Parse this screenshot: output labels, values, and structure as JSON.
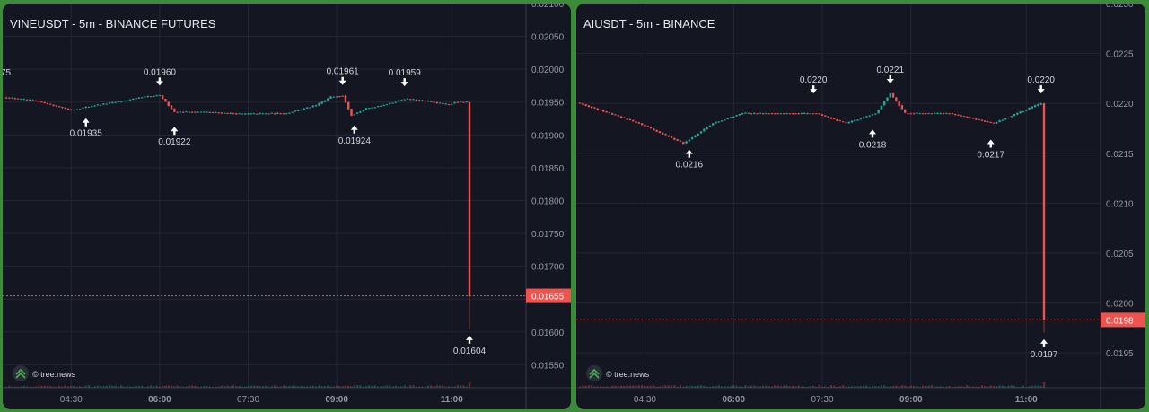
{
  "chart_data": [
    {
      "type": "candlestick",
      "title": "VINEUSDT - 5m - BINANCE FUTURES",
      "watermark": "© tree.news",
      "ylim": [
        0.01515,
        0.021
      ],
      "y_ticks": [
        "0.02100",
        "0.02050",
        "0.02000",
        "0.01950",
        "0.01900",
        "0.01850",
        "0.01800",
        "0.01750",
        "0.01700",
        "0.01650",
        "0.01600",
        "0.01550"
      ],
      "y_ticks_v": [
        0.021,
        0.0205,
        0.02,
        0.0195,
        0.019,
        0.0185,
        0.018,
        0.0175,
        0.017,
        0.0165,
        0.016,
        0.0155
      ],
      "x_ticks": [
        "04:30",
        "06:00",
        "07:30",
        "09:00",
        "11:00"
      ],
      "x_ticks_i": [
        22,
        52,
        82,
        112,
        151
      ],
      "left_edge_label": "75",
      "n": 158,
      "last_price": "0.01655",
      "last_price_v": 0.01655,
      "close_path": [
        [
          0,
          0.01957
        ],
        [
          10,
          0.01952
        ],
        [
          22,
          0.01938
        ],
        [
          30,
          0.01945
        ],
        [
          40,
          0.01952
        ],
        [
          47,
          0.01958
        ],
        [
          52,
          0.0196
        ],
        [
          57,
          0.01935
        ],
        [
          67,
          0.01935
        ],
        [
          80,
          0.01932
        ],
        [
          95,
          0.01933
        ],
        [
          105,
          0.01945
        ],
        [
          110,
          0.01958
        ],
        [
          114,
          0.0196
        ],
        [
          117,
          0.0193
        ],
        [
          122,
          0.0194
        ],
        [
          130,
          0.01948
        ],
        [
          135,
          0.01955
        ],
        [
          142,
          0.01952
        ],
        [
          150,
          0.01946
        ],
        [
          152,
          0.0195
        ],
        [
          156,
          0.0195
        ],
        [
          157,
          0.01655
        ]
      ],
      "final_wick_low": 0.01604,
      "annotations": [
        {
          "label": "0.01960",
          "i": 52,
          "price": 0.0196,
          "dir": "down"
        },
        {
          "label": "0.01935",
          "i": 27,
          "price": 0.01935,
          "dir": "up"
        },
        {
          "label": "0.01922",
          "i": 57,
          "price": 0.01922,
          "dir": "up"
        },
        {
          "label": "0.01961",
          "i": 114,
          "price": 0.01961,
          "dir": "down"
        },
        {
          "label": "0.01924",
          "i": 118,
          "price": 0.01924,
          "dir": "up"
        },
        {
          "label": "0.01959",
          "i": 135,
          "price": 0.01959,
          "dir": "down"
        },
        {
          "label": "0.01604",
          "i": 157,
          "price": 0.01604,
          "dir": "up"
        }
      ]
    },
    {
      "type": "candlestick",
      "title": "AIUSDT - 5m - BINANCE",
      "watermark": "© tree.news",
      "ylim": [
        0.01915,
        0.023
      ],
      "y_ticks": [
        "0.0230",
        "0.0225",
        "0.0220",
        "0.0215",
        "0.0210",
        "0.0205",
        "0.0200",
        "0.0195"
      ],
      "y_ticks_v": [
        0.023,
        0.0225,
        0.022,
        0.0215,
        0.021,
        0.0205,
        0.02,
        0.0195
      ],
      "x_ticks": [
        "04:30",
        "06:00",
        "07:30",
        "09:00",
        "11:00"
      ],
      "x_ticks_i": [
        22,
        52,
        82,
        112,
        151
      ],
      "left_edge_label": "",
      "n": 158,
      "last_price": "0.0198",
      "last_price_v": 0.01983,
      "close_path": [
        [
          0,
          0.022
        ],
        [
          10,
          0.0219
        ],
        [
          20,
          0.0218
        ],
        [
          35,
          0.0216
        ],
        [
          45,
          0.0218
        ],
        [
          55,
          0.0219
        ],
        [
          70,
          0.0219
        ],
        [
          80,
          0.0219
        ],
        [
          90,
          0.0218
        ],
        [
          100,
          0.0219
        ],
        [
          105,
          0.0221
        ],
        [
          110,
          0.0219
        ],
        [
          125,
          0.0219
        ],
        [
          140,
          0.0218
        ],
        [
          148,
          0.0219
        ],
        [
          156,
          0.022
        ],
        [
          157,
          0.01983
        ]
      ],
      "final_wick_low": 0.0197,
      "annotations": [
        {
          "label": "0.0216",
          "i": 37,
          "price": 0.0216,
          "dir": "up"
        },
        {
          "label": "0.0220",
          "i": 79,
          "price": 0.022,
          "dir": "down"
        },
        {
          "label": "0.0218",
          "i": 99,
          "price": 0.0218,
          "dir": "up"
        },
        {
          "label": "0.0221",
          "i": 105,
          "price": 0.0221,
          "dir": "down"
        },
        {
          "label": "0.0217",
          "i": 139,
          "price": 0.0217,
          "dir": "up"
        },
        {
          "label": "0.0220",
          "i": 156,
          "price": 0.022,
          "dir": "down"
        },
        {
          "label": "0.0197",
          "i": 157,
          "price": 0.0197,
          "dir": "up"
        }
      ]
    }
  ],
  "colors": {
    "up": "#26a69a",
    "down": "#ef5350",
    "grid": "#232735",
    "text": "#d1d4dc",
    "axis": "#9598a1",
    "background": "#141722"
  }
}
